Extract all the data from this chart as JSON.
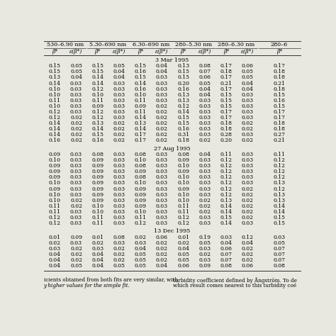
{
  "group_labels": [
    "530–6.90 nm",
    "5.30–690 nm",
    "6.30–690 nm",
    "280–5.30 nm",
    "280–6.30 nm",
    "280–6"
  ],
  "sub_labels": [
    "β*",
    "ε(β*)",
    "β*",
    "ε(β*)",
    "β*",
    "ε(β*)",
    "β*",
    "ε(β*)",
    "β*",
    "ε(β*)",
    "β*"
  ],
  "section_labels": [
    "3 Mar 1995",
    "27 Aug 1995",
    "13 Dec 1995"
  ],
  "mar_data": [
    [
      0.15,
      0.05,
      0.15,
      0.05,
      0.15,
      0.04,
      0.13,
      0.08,
      0.17,
      0.06,
      0.17
    ],
    [
      0.15,
      0.05,
      0.15,
      0.04,
      0.16,
      0.04,
      0.15,
      0.07,
      0.18,
      0.05,
      0.18
    ],
    [
      0.13,
      0.04,
      0.14,
      0.04,
      0.15,
      0.03,
      0.15,
      0.06,
      0.17,
      0.05,
      0.18
    ],
    [
      0.14,
      0.03,
      0.14,
      0.03,
      0.14,
      0.03,
      0.2,
      0.05,
      0.21,
      0.04,
      0.21
    ],
    [
      0.1,
      0.03,
      0.12,
      0.03,
      0.16,
      0.03,
      0.16,
      0.04,
      0.17,
      0.04,
      0.18
    ],
    [
      0.1,
      0.03,
      0.1,
      0.03,
      0.1,
      0.03,
      0.13,
      0.04,
      0.15,
      0.03,
      0.15
    ],
    [
      0.11,
      0.03,
      0.11,
      0.03,
      0.11,
      0.03,
      0.13,
      0.03,
      0.15,
      0.03,
      0.16
    ],
    [
      0.1,
      0.03,
      0.09,
      0.03,
      0.09,
      0.02,
      0.12,
      0.03,
      0.15,
      0.03,
      0.15
    ],
    [
      0.12,
      0.03,
      0.12,
      0.03,
      0.11,
      0.02,
      0.14,
      0.03,
      0.17,
      0.03,
      0.17
    ],
    [
      0.12,
      0.02,
      0.12,
      0.03,
      0.14,
      0.02,
      0.15,
      0.03,
      0.17,
      0.03,
      0.17
    ],
    [
      0.14,
      0.02,
      0.13,
      0.02,
      0.13,
      0.02,
      0.15,
      0.03,
      0.18,
      0.02,
      0.18
    ],
    [
      0.14,
      0.02,
      0.14,
      0.02,
      0.14,
      0.02,
      0.16,
      0.03,
      0.18,
      0.02,
      0.18
    ],
    [
      0.14,
      0.02,
      0.15,
      0.02,
      0.17,
      0.02,
      0.31,
      0.03,
      0.28,
      0.03,
      0.27
    ],
    [
      0.16,
      0.02,
      0.16,
      0.02,
      0.17,
      0.02,
      0.18,
      0.02,
      0.2,
      0.02,
      0.21
    ]
  ],
  "aug_data": [
    [
      0.09,
      0.03,
      0.08,
      0.03,
      0.08,
      0.03,
      0.08,
      0.04,
      0.11,
      0.03,
      0.11
    ],
    [
      0.1,
      0.03,
      0.09,
      0.03,
      0.1,
      0.03,
      0.09,
      0.03,
      0.12,
      0.03,
      0.12
    ],
    [
      0.09,
      0.03,
      0.09,
      0.03,
      0.08,
      0.03,
      0.1,
      0.03,
      0.12,
      0.03,
      0.12
    ],
    [
      0.09,
      0.03,
      0.09,
      0.03,
      0.09,
      0.03,
      0.09,
      0.03,
      0.12,
      0.03,
      0.12
    ],
    [
      0.09,
      0.03,
      0.09,
      0.03,
      0.08,
      0.03,
      0.1,
      0.03,
      0.12,
      0.03,
      0.12
    ],
    [
      0.1,
      0.03,
      0.09,
      0.03,
      0.1,
      0.03,
      0.1,
      0.03,
      0.12,
      0.03,
      0.13
    ],
    [
      0.09,
      0.03,
      0.09,
      0.03,
      0.09,
      0.03,
      0.09,
      0.03,
      0.12,
      0.02,
      0.12
    ],
    [
      0.1,
      0.03,
      0.09,
      0.03,
      0.09,
      0.03,
      0.1,
      0.03,
      0.12,
      0.02,
      0.13
    ],
    [
      0.1,
      0.02,
      0.09,
      0.03,
      0.09,
      0.03,
      0.1,
      0.02,
      0.13,
      0.02,
      0.13
    ],
    [
      0.11,
      0.02,
      0.1,
      0.03,
      0.09,
      0.03,
      0.11,
      0.02,
      0.14,
      0.02,
      0.14
    ],
    [
      0.11,
      0.03,
      0.1,
      0.03,
      0.1,
      0.03,
      0.11,
      0.02,
      0.14,
      0.02,
      0.14
    ],
    [
      0.12,
      0.03,
      0.11,
      0.03,
      0.11,
      0.03,
      0.12,
      0.03,
      0.15,
      0.02,
      0.15
    ],
    [
      0.12,
      0.03,
      0.11,
      0.03,
      0.12,
      0.03,
      0.12,
      0.03,
      0.14,
      0.03,
      0.15
    ]
  ],
  "dec_data": [
    [
      0.01,
      0.09,
      0.01,
      0.08,
      0.02,
      0.06,
      0.01,
      0.19,
      0.03,
      0.12,
      0.03
    ],
    [
      0.02,
      0.03,
      0.02,
      0.03,
      0.03,
      0.02,
      0.02,
      0.05,
      0.04,
      0.04,
      0.05
    ],
    [
      0.03,
      0.02,
      0.03,
      0.02,
      0.04,
      0.02,
      0.04,
      0.03,
      0.06,
      0.02,
      0.07
    ],
    [
      0.04,
      0.02,
      0.04,
      0.02,
      0.05,
      0.02,
      0.05,
      0.02,
      0.07,
      0.02,
      0.07
    ],
    [
      0.04,
      0.02,
      0.04,
      0.02,
      0.05,
      0.02,
      0.05,
      0.03,
      0.07,
      0.02,
      0.07
    ],
    [
      0.04,
      0.05,
      0.04,
      0.05,
      0.05,
      0.04,
      0.06,
      0.09,
      0.08,
      0.06,
      0.08
    ]
  ],
  "bg_color": "#e8e8e0",
  "text_color": "#000000",
  "footer_left1": "icients obtained from both fits are very similar, with",
  "footer_left2": "y higher values for the simple fit.",
  "footer_right1": "turbidity coefficient defined by Ångström. To de",
  "footer_right2": "which result comes nearest to this turbidity coé",
  "fs_header": 5.8,
  "fs_sub": 5.5,
  "fs_data": 5.5,
  "fs_footer": 5.2
}
